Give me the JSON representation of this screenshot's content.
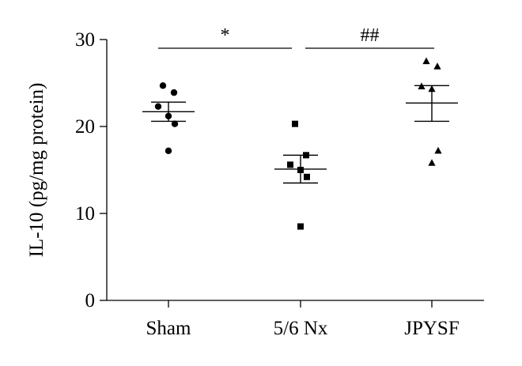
{
  "chart_data": {
    "type": "scatter",
    "ylabel": "IL-10 (pg/mg protein)",
    "ylim": [
      0,
      30
    ],
    "yticks": [
      0,
      10,
      20,
      30
    ],
    "categories": [
      "Sham",
      "5/6 Nx",
      "JPYSF"
    ],
    "grid": false,
    "series": [
      {
        "category": "Sham",
        "marker": "circle",
        "points": [
          24.7,
          23.9,
          22.3,
          21.2,
          20.3,
          17.2
        ],
        "mean": 21.7,
        "sem_upper": 22.8,
        "sem_lower": 20.6
      },
      {
        "category": "5/6 Nx",
        "marker": "square",
        "points": [
          20.3,
          16.7,
          15.6,
          15.0,
          14.2,
          8.5
        ],
        "mean": 15.1,
        "sem_upper": 16.7,
        "sem_lower": 13.5
      },
      {
        "category": "JPYSF",
        "marker": "triangle",
        "points": [
          27.5,
          26.9,
          24.6,
          24.3,
          17.2,
          15.8
        ],
        "mean": 22.7,
        "sem_upper": 24.7,
        "sem_lower": 20.6
      }
    ],
    "annotations": [
      {
        "label": "*",
        "from": "Sham",
        "to": "5/6 Nx",
        "y": 29.0
      },
      {
        "label": "##",
        "from": "5/6 Nx",
        "to": "JPYSF",
        "y": 29.0
      }
    ]
  }
}
